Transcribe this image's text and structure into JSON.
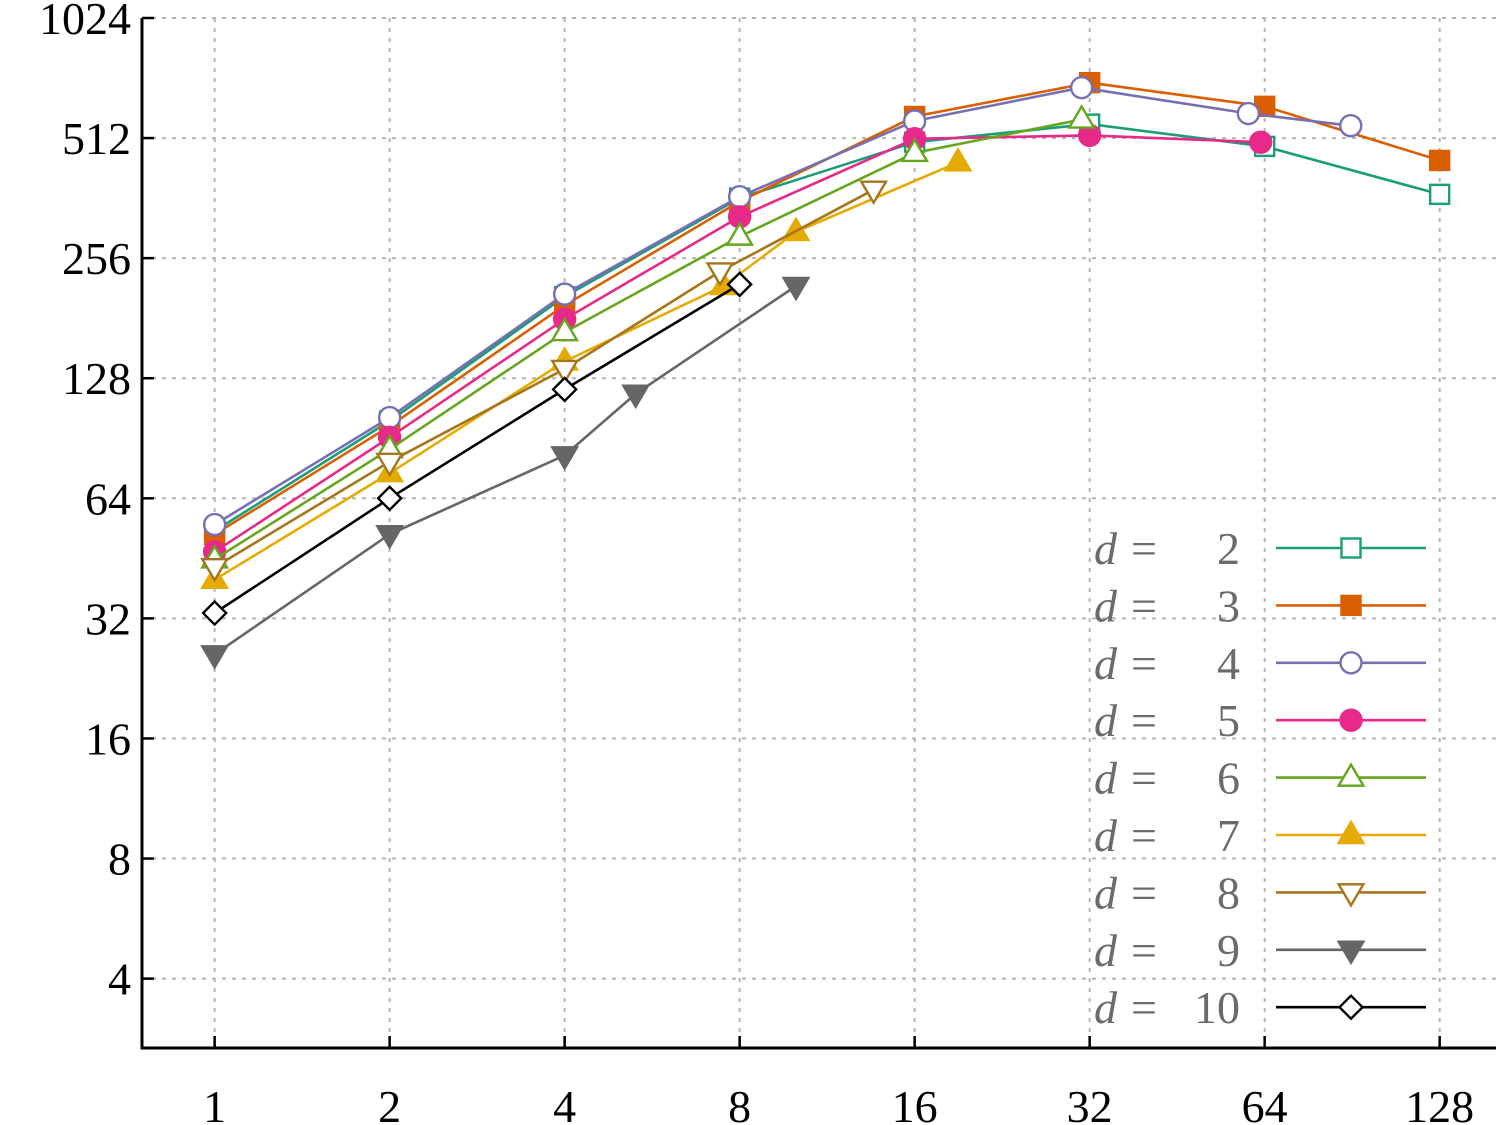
{
  "chart_data": {
    "type": "line",
    "title": "",
    "xlabel": "",
    "ylabel": "",
    "x_scale": "log2",
    "y_scale": "log2",
    "xlim": [
      0.75,
      160
    ],
    "ylim": [
      2.68,
      1024
    ],
    "x_ticks": [
      "1",
      "2",
      "4",
      "8",
      "16",
      "32",
      "64",
      "128"
    ],
    "x_tick_values": [
      1,
      2,
      4,
      8,
      16,
      32,
      64,
      128
    ],
    "y_ticks": [
      "4",
      "8",
      "16",
      "32",
      "64",
      "128",
      "256",
      "512",
      "1024"
    ],
    "y_tick_values": [
      4,
      8,
      16,
      32,
      64,
      128,
      256,
      512,
      1024
    ],
    "grid": true,
    "legend_position": "bottom-right",
    "series": [
      {
        "name": "d =   2",
        "legend_var": "d",
        "legend_value": "2",
        "color": "#1b9e77",
        "marker": "square-open",
        "x": [
          1,
          2,
          4,
          8,
          16,
          32,
          64,
          128
        ],
        "y": [
          53,
          100,
          205,
          362,
          500,
          555,
          488,
          370
        ]
      },
      {
        "name": "d =   3",
        "legend_var": "d",
        "legend_value": "3",
        "color": "#d95f02",
        "marker": "square-filled",
        "x": [
          1,
          2,
          4,
          8,
          16,
          32,
          64,
          128
        ],
        "y": [
          52,
          97,
          195,
          355,
          580,
          705,
          615,
          450
        ]
      },
      {
        "name": "d =   4",
        "legend_var": "d",
        "legend_value": "4",
        "color": "#7570b3",
        "marker": "circle-open",
        "x": [
          1,
          2,
          4,
          8,
          16,
          31,
          60,
          90
        ],
        "y": [
          55,
          102,
          208,
          365,
          565,
          685,
          590,
          550
        ]
      },
      {
        "name": "d =   5",
        "legend_var": "d",
        "legend_value": "5",
        "color": "#e7298a",
        "marker": "circle-filled",
        "x": [
          1,
          2,
          4,
          8,
          16,
          32,
          63
        ],
        "y": [
          47,
          91,
          180,
          325,
          510,
          520,
          500
        ]
      },
      {
        "name": "d =   6",
        "legend_var": "d",
        "legend_value": "6",
        "color": "#66a61e",
        "marker": "triangle-up-open",
        "x": [
          1,
          2,
          4,
          8,
          16,
          31
        ],
        "y": [
          45,
          85,
          167,
          290,
          470,
          570
        ]
      },
      {
        "name": "d =   7",
        "legend_var": "d",
        "legend_value": "7",
        "color": "#e6ab02",
        "marker": "triangle-up-filled",
        "x": [
          1,
          2,
          4,
          7.5,
          10,
          19
        ],
        "y": [
          40,
          74,
          141,
          218,
          298,
          445
        ]
      },
      {
        "name": "d =   8",
        "legend_var": "d",
        "legend_value": "8",
        "color": "#a6761d",
        "marker": "triangle-down-open",
        "x": [
          1,
          2,
          4,
          7.4,
          13.6
        ],
        "y": [
          43,
          79,
          135,
          237,
          380
        ]
      },
      {
        "name": "d =   9",
        "legend_var": "d",
        "legend_value": "9",
        "color": "#666666",
        "marker": "triangle-down-filled",
        "x": [
          1,
          2,
          4,
          5.3,
          10
        ],
        "y": [
          26,
          52,
          82,
          117,
          218
        ]
      },
      {
        "name": "d = 10",
        "legend_var": "d",
        "legend_value": "10",
        "color": "#000000",
        "marker": "diamond-open",
        "x": [
          1,
          2,
          4,
          8
        ],
        "y": [
          33,
          64,
          120,
          220
        ]
      }
    ]
  }
}
